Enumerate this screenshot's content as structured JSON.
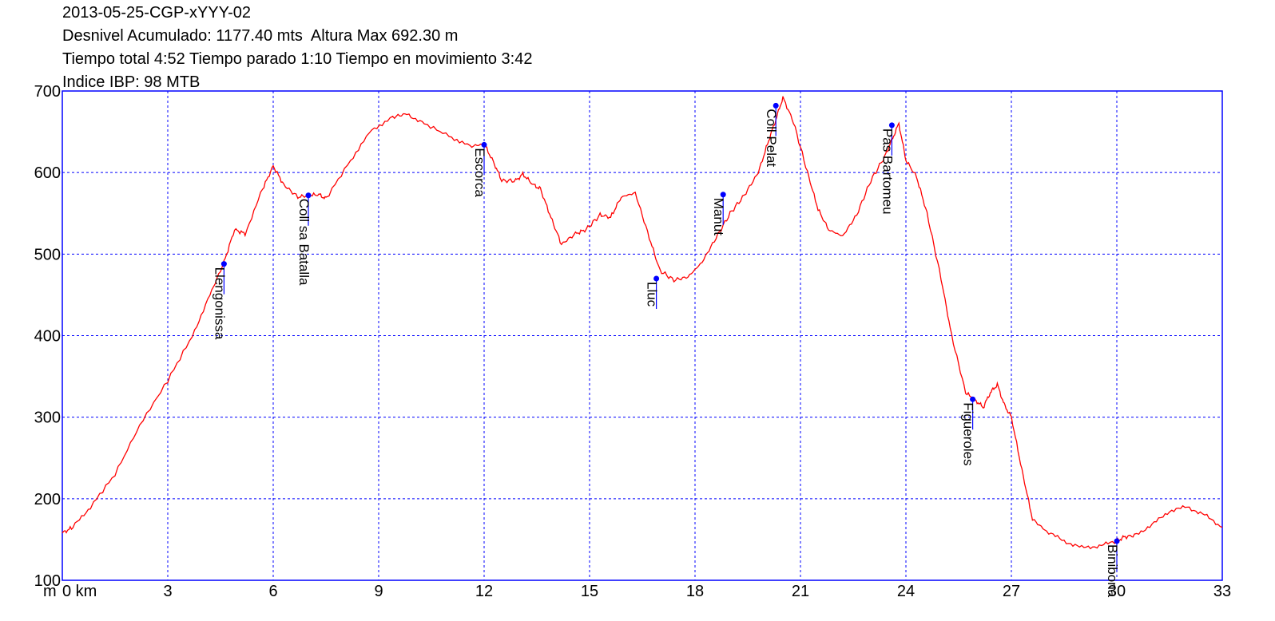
{
  "header": {
    "title": "2013-05-25-CGP-xYYY-02",
    "line2": "Desnivel Acumulado: 1177.40 mts  Altura Max 692.30 m",
    "line3": "Tiempo total 4:52 Tiempo parado 1:10 Tiempo en movimiento 3:42",
    "line4": "Indice IBP: 98 MTB"
  },
  "chart_data": {
    "type": "line",
    "xlabel": "km",
    "ylabel": "m",
    "x_tick_prefix": "m",
    "xlim": [
      0,
      33
    ],
    "ylim": [
      100,
      700
    ],
    "x_ticks": [
      0,
      3,
      6,
      9,
      12,
      15,
      18,
      21,
      24,
      27,
      30,
      33
    ],
    "x_tick_labels": [
      "0 km",
      "3",
      "6",
      "9",
      "12",
      "15",
      "18",
      "21",
      "24",
      "27",
      "30",
      "33"
    ],
    "y_ticks": [
      100,
      200,
      300,
      400,
      500,
      600,
      700
    ],
    "y_tick_labels": [
      "100",
      "200",
      "300",
      "400",
      "500",
      "600",
      "700"
    ],
    "grid": true,
    "colors": {
      "profile": "#ff0000",
      "waypoint": "#0000ff",
      "frame": "#0000ff",
      "grid": "#0000ff"
    },
    "series": [
      {
        "x": [
          0,
          0.3,
          0.8,
          1.5,
          2.2,
          3,
          3.7,
          4.2,
          4.6,
          4.9,
          5.2,
          5.7,
          6,
          6.3,
          6.7,
          7,
          7.3,
          7.5,
          8.2,
          8.8,
          9.4,
          9.8,
          10.3,
          11,
          11.6,
          12,
          12.3,
          12.5,
          12.9,
          13.1,
          13.4,
          13.6,
          13.9,
          14.2,
          14.6,
          14.9,
          15.3,
          15.6,
          15.9,
          16.3,
          16.7,
          17,
          17.4,
          17.8,
          18.2,
          18.6,
          19,
          19.4,
          19.8,
          20.1,
          20.3,
          20.5,
          20.8,
          21.2,
          21.5,
          21.8,
          22.2,
          22.6,
          23,
          23.4,
          23.6,
          23.8,
          24,
          24.3,
          24.6,
          25,
          25.3,
          25.7,
          26,
          26.2,
          26.4,
          26.6,
          26.8,
          27,
          27.3,
          27.6,
          28,
          28.5,
          29,
          29.5,
          30,
          30.2,
          30.5,
          31,
          31.5,
          32,
          32.5,
          33
        ],
        "y": [
          158,
          165,
          190,
          230,
          290,
          345,
          400,
          450,
          490,
          530,
          525,
          580,
          608,
          585,
          570,
          572,
          573,
          568,
          615,
          652,
          668,
          672,
          660,
          645,
          632,
          635,
          610,
          590,
          590,
          598,
          585,
          580,
          545,
          512,
          525,
          530,
          548,
          545,
          570,
          575,
          520,
          480,
          468,
          472,
          490,
          520,
          550,
          572,
          600,
          640,
          665,
          692,
          662,
          600,
          555,
          530,
          522,
          548,
          590,
          620,
          640,
          660,
          615,
          595,
          550,
          470,
          400,
          330,
          320,
          312,
          330,
          340,
          315,
          300,
          235,
          175,
          160,
          148,
          140,
          142,
          148,
          153,
          155,
          168,
          185,
          190,
          180,
          165
        ]
      }
    ],
    "waypoints": [
      {
        "name": "Llengonissa",
        "x": 4.6,
        "y": 488
      },
      {
        "name": "Coll sa Batalla",
        "x": 7.0,
        "y": 572
      },
      {
        "name": "Escorca",
        "x": 12.0,
        "y": 634
      },
      {
        "name": "Lluc",
        "x": 16.9,
        "y": 470
      },
      {
        "name": "Manut",
        "x": 18.8,
        "y": 573
      },
      {
        "name": "Coll Pelat",
        "x": 20.3,
        "y": 682
      },
      {
        "name": "Pas Bartomeu",
        "x": 23.6,
        "y": 658
      },
      {
        "name": "Figueroles",
        "x": 25.9,
        "y": 322
      },
      {
        "name": "Binibona",
        "x": 30.0,
        "y": 148
      }
    ]
  }
}
